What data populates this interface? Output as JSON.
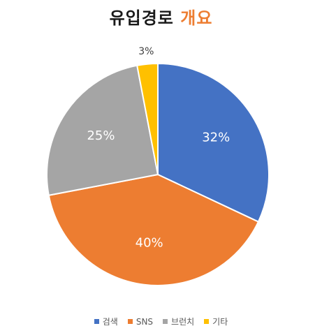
{
  "title": {
    "main": "유입경로",
    "accent": "개요",
    "accent_color": "#ED7D31"
  },
  "chart_data": {
    "type": "pie",
    "start_angle_deg": 0,
    "direction": "clockwise",
    "legend_position": "bottom",
    "slices": [
      {
        "label": "검색",
        "value": 32,
        "display": "32%",
        "color": "#4472C4"
      },
      {
        "label": "SNS",
        "value": 40,
        "display": "40%",
        "color": "#ED7D31"
      },
      {
        "label": "브런치",
        "value": 25,
        "display": "25%",
        "color": "#A5A5A5"
      },
      {
        "label": "기타",
        "value": 3,
        "display": "3%",
        "color": "#FFC000"
      }
    ]
  }
}
